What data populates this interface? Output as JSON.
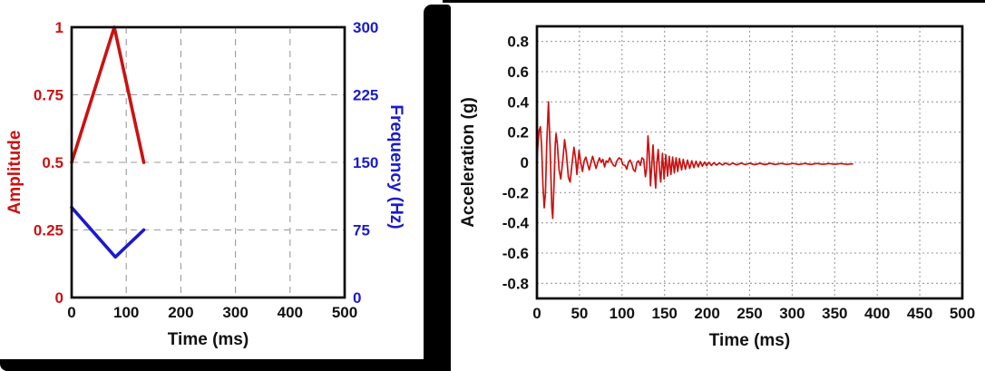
{
  "page": {
    "background_color": "#ffffff",
    "frame_color": "#000000",
    "accent_red": "#cc1111",
    "accent_blue": "#1a1acc",
    "grid_color": "#999999",
    "axis_color": "#111111"
  },
  "chart_data": [
    {
      "id": "sweep-profile",
      "type": "line",
      "title": "",
      "xlabel": "Time (ms)",
      "ylabel": "Amplitude",
      "ylabel_right": "Frequency (Hz)",
      "xlim": [
        0,
        500
      ],
      "ylim": [
        0,
        1
      ],
      "ylim_right": [
        0,
        300
      ],
      "x_ticks": [
        0,
        100,
        200,
        300,
        400,
        500
      ],
      "x_tick_labels": [
        "0",
        "100",
        "200",
        "300",
        "400",
        "500"
      ],
      "y_ticks": [
        0,
        0.25,
        0.5,
        0.75,
        1
      ],
      "y_tick_labels": [
        "0",
        "0.25",
        "0.5",
        "0.75",
        "1"
      ],
      "y_ticks_right": [
        0,
        75,
        150,
        225,
        300
      ],
      "y_tick_labels_right": [
        "0",
        "75",
        "150",
        "225",
        "300"
      ],
      "grid_x": [
        100,
        200,
        300,
        400
      ],
      "grid_y": [
        0.25,
        0.5,
        0.75
      ],
      "grid_style": "dashed",
      "grid_dash": "7 6",
      "legend": "none",
      "tick_color_x": "#111111",
      "tick_color_y": "#cc1111",
      "tick_color_y_right": "#1a1acc",
      "series": [
        {
          "name": "Amplitude",
          "color": "#cc1111",
          "axis": "left",
          "width": 3.6,
          "points": [
            [
              0,
              0.5
            ],
            [
              78,
              1.0
            ],
            [
              132,
              0.5
            ]
          ]
        },
        {
          "name": "Frequency (Hz)",
          "color": "#1a1acc",
          "axis": "right",
          "width": 3.6,
          "points": [
            [
              0,
              100
            ],
            [
              80,
              45
            ],
            [
              132,
              75
            ]
          ]
        }
      ]
    },
    {
      "id": "acceleration-response",
      "type": "line",
      "title": "",
      "xlabel": "Time (ms)",
      "ylabel": "Acceleration (g)",
      "xlim": [
        0,
        500
      ],
      "ylim": [
        -0.9,
        0.9
      ],
      "x_ticks": [
        0,
        50,
        100,
        150,
        200,
        250,
        300,
        350,
        400,
        450,
        500
      ],
      "x_tick_labels": [
        "0",
        "50",
        "100",
        "150",
        "200",
        "250",
        "300",
        "350",
        "400",
        "450",
        "500"
      ],
      "y_ticks": [
        -0.8,
        -0.6,
        -0.4,
        -0.2,
        0,
        0.2,
        0.4,
        0.6,
        0.8
      ],
      "y_tick_labels": [
        "-0.8",
        "-0.6",
        "-0.4",
        "-0.2",
        "0",
        "0.2",
        "0.4",
        "0.6",
        "0.8"
      ],
      "grid_x": [
        50,
        100,
        150,
        200,
        250,
        300,
        350,
        400,
        450
      ],
      "grid_y": [
        -0.8,
        -0.6,
        -0.4,
        -0.2,
        0,
        0.2,
        0.4,
        0.6,
        0.8
      ],
      "grid_style": "dotted",
      "grid_dash": "2 3",
      "legend": "none",
      "tick_color_x": "#111111",
      "tick_color_y": "#111111",
      "series": [
        {
          "name": "Acceleration",
          "color": "#cc1111",
          "axis": "left",
          "width": 1.7,
          "points": [
            [
              0,
              0
            ],
            [
              1,
              0.1
            ],
            [
              2.5,
              0.21
            ],
            [
              4,
              0.235
            ],
            [
              5.5,
              0.1
            ],
            [
              7,
              -0.15
            ],
            [
              8.5,
              -0.3
            ],
            [
              10,
              -0.2
            ],
            [
              11.5,
              0.12
            ],
            [
              13.5,
              0.4
            ],
            [
              15.5,
              0.1
            ],
            [
              17.5,
              -0.3
            ],
            [
              18.5,
              -0.37
            ],
            [
              20,
              -0.15
            ],
            [
              21.5,
              0.12
            ],
            [
              22.5,
              0.19
            ],
            [
              24,
              0.12
            ],
            [
              26,
              -0.05
            ],
            [
              28,
              -0.11
            ],
            [
              30.5,
              0.02
            ],
            [
              32.5,
              0.15
            ],
            [
              34.5,
              0.06
            ],
            [
              37,
              -0.1
            ],
            [
              39,
              -0.13
            ],
            [
              41,
              -0.02
            ],
            [
              43.5,
              0.1
            ],
            [
              45.5,
              0.02
            ],
            [
              47,
              -0.08
            ],
            [
              49.5,
              0.08
            ],
            [
              51.5,
              0
            ],
            [
              53.5,
              -0.06
            ],
            [
              55.5,
              0.01
            ],
            [
              57.5,
              0.035
            ],
            [
              59.5,
              -0.01
            ],
            [
              61.5,
              -0.05
            ],
            [
              63.5,
              0
            ],
            [
              65.5,
              0.04
            ],
            [
              67.5,
              0
            ],
            [
              69.5,
              -0.04
            ],
            [
              71.5,
              0
            ],
            [
              73.5,
              0.03
            ],
            [
              75.5,
              0
            ],
            [
              77.5,
              0.02
            ],
            [
              79.5,
              -0.03
            ],
            [
              81.5,
              0.01
            ],
            [
              83.5,
              0
            ],
            [
              85.5,
              0.03
            ],
            [
              88,
              0
            ],
            [
              90,
              -0.02
            ],
            [
              92,
              -0.025
            ],
            [
              94,
              0.01
            ],
            [
              96.5,
              0.03
            ],
            [
              99,
              0.02
            ],
            [
              101,
              -0.015
            ],
            [
              103.5,
              -0.02
            ],
            [
              105.5,
              -0.045
            ],
            [
              107.5,
              0
            ],
            [
              109.5,
              0.015
            ],
            [
              111.5,
              -0.01
            ],
            [
              113.5,
              -0.05
            ],
            [
              115.5,
              -0.06
            ],
            [
              117.5,
              0
            ],
            [
              119.5,
              0.01
            ],
            [
              121.5,
              -0.02
            ],
            [
              123.5,
              0.03
            ],
            [
              125.5,
              0.02
            ],
            [
              127.5,
              -0.095
            ],
            [
              129,
              -0.04
            ],
            [
              130.5,
              0.175
            ],
            [
              132,
              0.06
            ],
            [
              133.5,
              -0.155
            ],
            [
              135,
              -0.02
            ],
            [
              136.5,
              0.115
            ],
            [
              138,
              -0.04
            ],
            [
              139.5,
              -0.17
            ],
            [
              141,
              0
            ],
            [
              142.5,
              0.085
            ],
            [
              144,
              -0.05
            ],
            [
              145.5,
              -0.13
            ],
            [
              147.5,
              0.06
            ],
            [
              149.5,
              -0.11
            ],
            [
              151.5,
              0.05
            ],
            [
              153.5,
              -0.09
            ],
            [
              155.5,
              0.04
            ],
            [
              157.5,
              -0.08
            ],
            [
              159.5,
              0.035
            ],
            [
              161.5,
              -0.07
            ],
            [
              163.5,
              0.03
            ],
            [
              165.5,
              -0.06
            ],
            [
              167.5,
              0.025
            ],
            [
              170,
              -0.05
            ],
            [
              172,
              0.02
            ],
            [
              174.5,
              -0.045
            ],
            [
              177,
              0.015
            ],
            [
              179.5,
              -0.04
            ],
            [
              182,
              0.01
            ],
            [
              184.5,
              -0.035
            ],
            [
              187,
              0.008
            ],
            [
              189.5,
              -0.03
            ],
            [
              192,
              0.005
            ],
            [
              194.5,
              -0.025
            ],
            [
              197,
              0.002
            ],
            [
              199.5,
              -0.022
            ],
            [
              202,
              0
            ],
            [
              205,
              -0.02
            ],
            [
              208,
              -0.002
            ],
            [
              211,
              -0.018
            ],
            [
              214.5,
              -0.004
            ],
            [
              218,
              -0.017
            ],
            [
              222,
              -0.004
            ],
            [
              226,
              -0.016
            ],
            [
              230,
              -0.005
            ],
            [
              235,
              -0.016
            ],
            [
              240,
              -0.005
            ],
            [
              245,
              -0.015
            ],
            [
              250,
              -0.006
            ],
            [
              256,
              -0.015
            ],
            [
              262,
              -0.006
            ],
            [
              268,
              -0.015
            ],
            [
              274,
              -0.006
            ],
            [
              280,
              -0.014
            ],
            [
              287,
              -0.007
            ],
            [
              294,
              -0.014
            ],
            [
              301,
              -0.007
            ],
            [
              308,
              -0.014
            ],
            [
              315,
              -0.007
            ],
            [
              322,
              -0.014
            ],
            [
              329,
              -0.007
            ],
            [
              336,
              -0.013
            ],
            [
              343,
              -0.008
            ],
            [
              350,
              -0.013
            ],
            [
              357,
              -0.008
            ],
            [
              364,
              -0.013
            ],
            [
              371,
              -0.01
            ]
          ]
        }
      ]
    }
  ]
}
